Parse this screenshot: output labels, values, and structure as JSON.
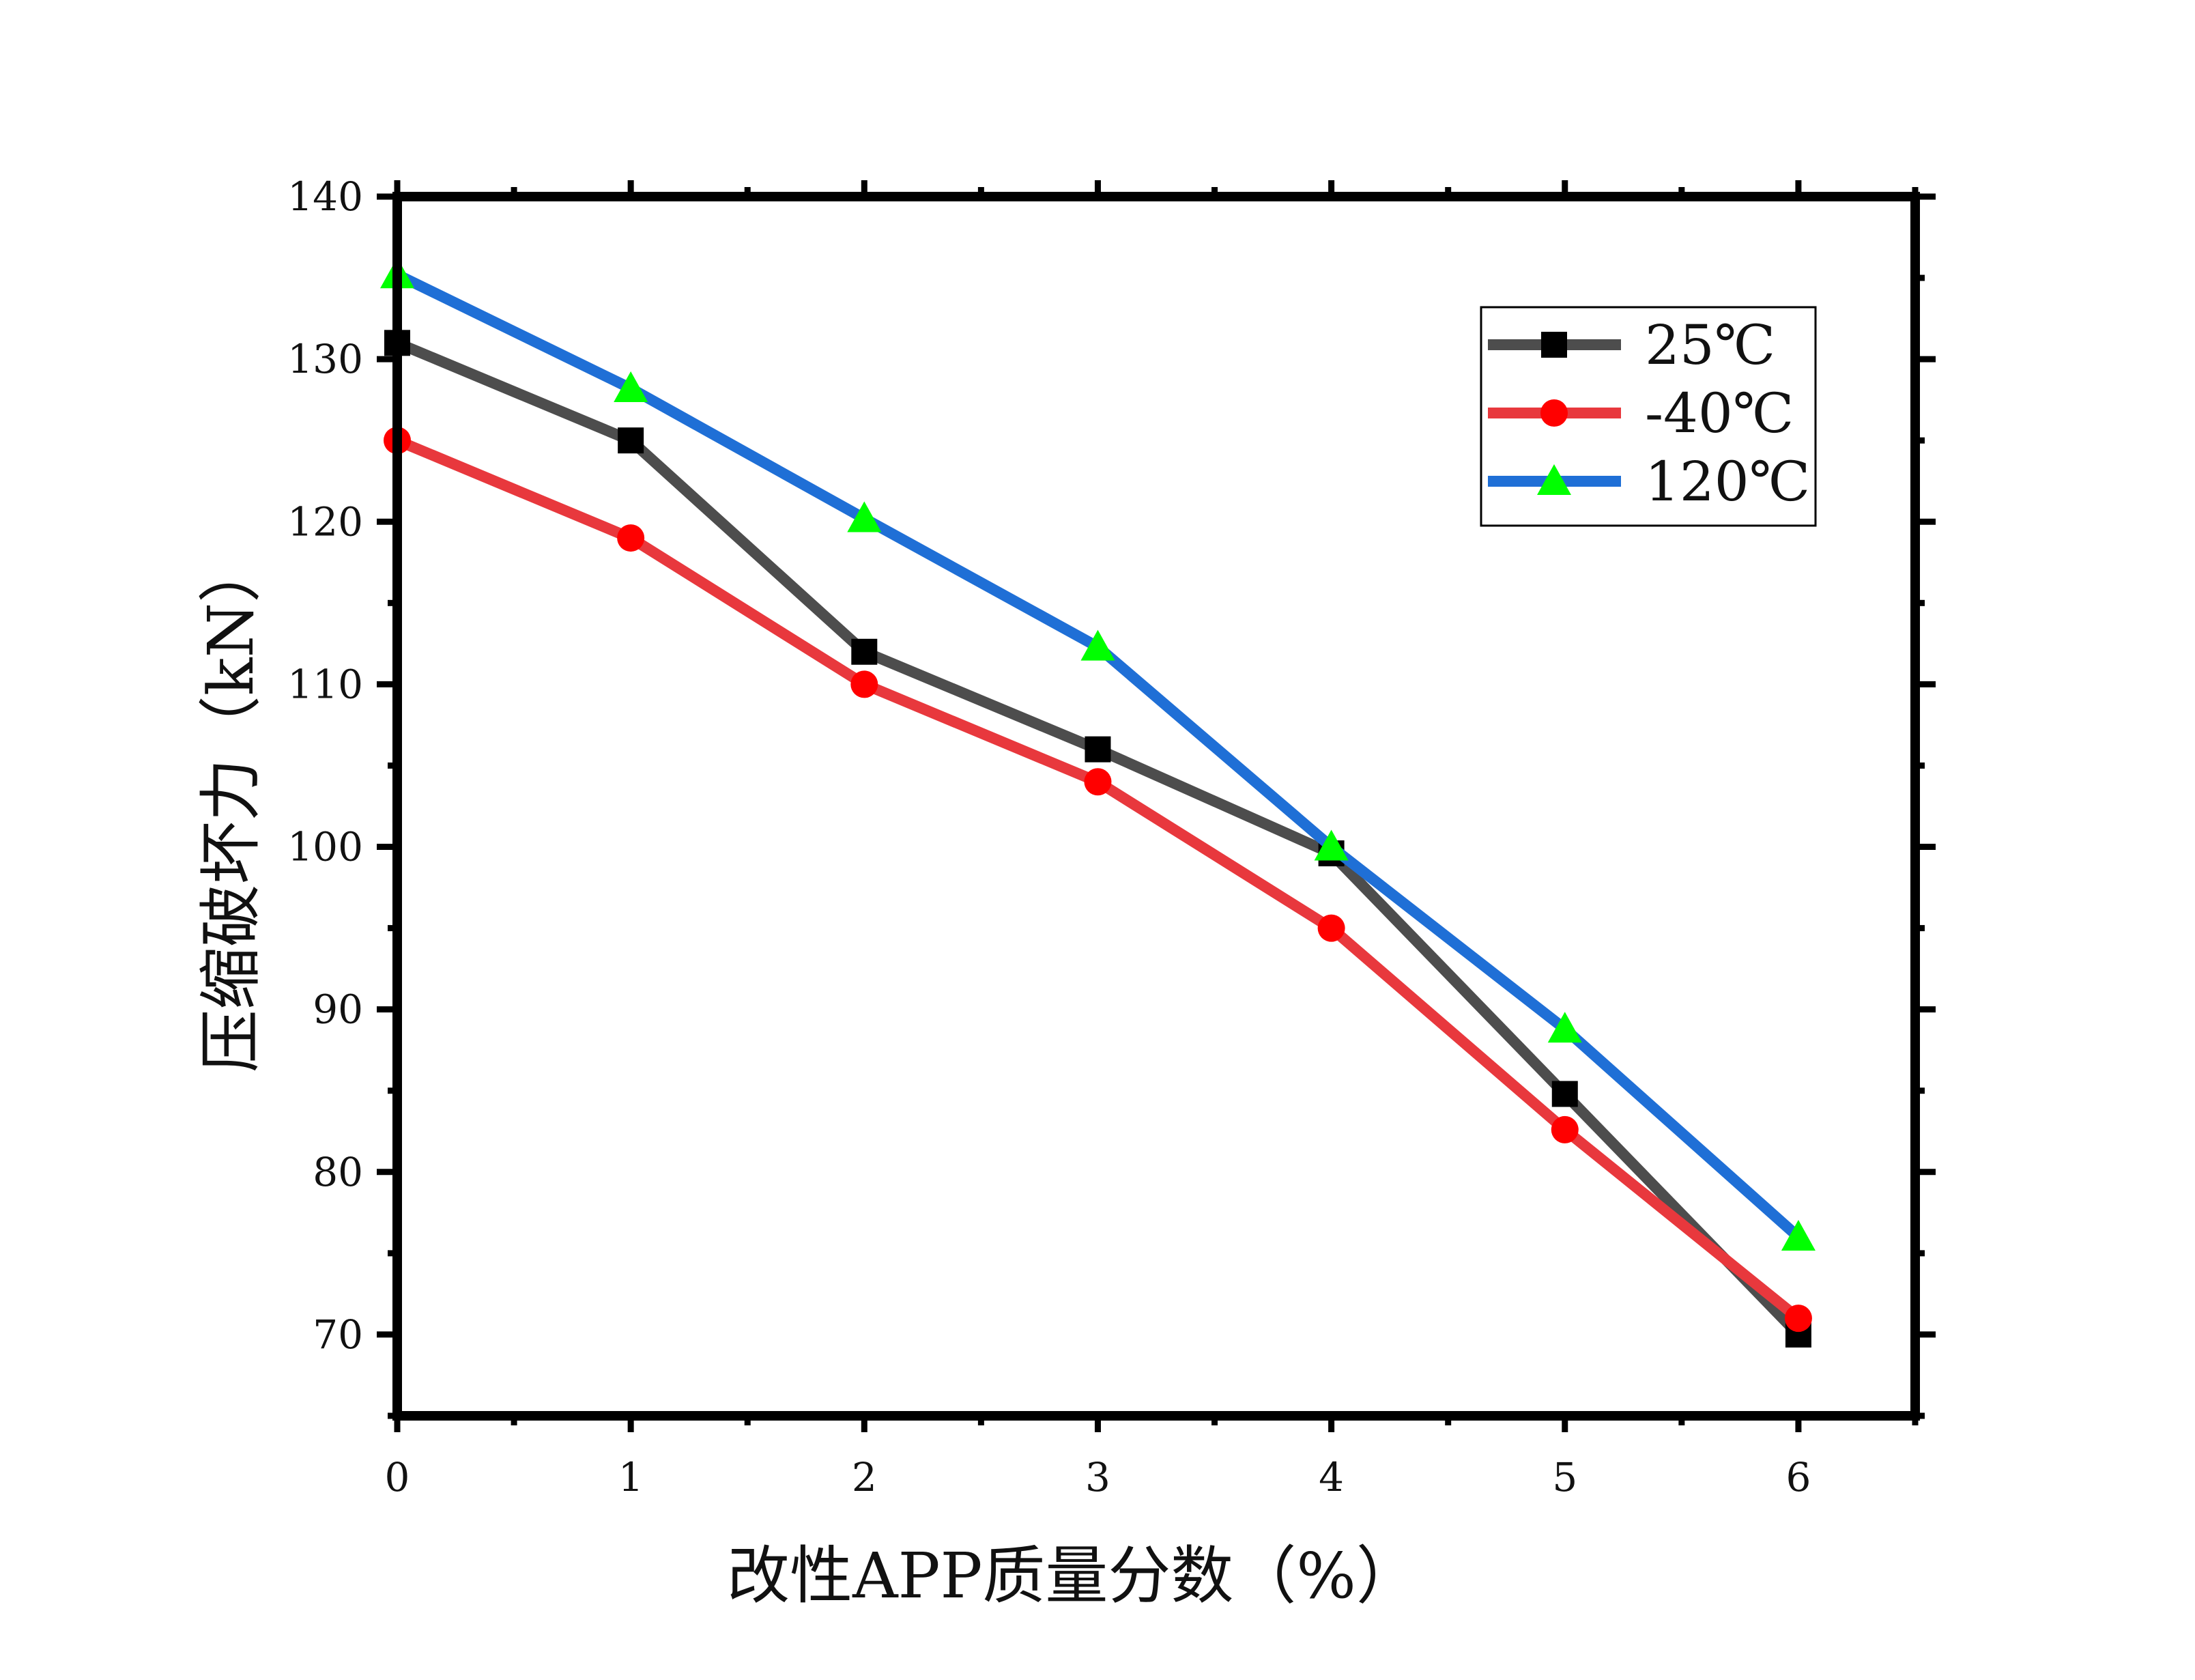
{
  "chart_data": {
    "type": "line",
    "xlabel": "改性APP质量分数（%）",
    "ylabel": "压缩破坏力（kN）",
    "x": [
      0,
      1,
      2,
      3,
      4,
      5,
      6
    ],
    "xlim": [
      0,
      6.5
    ],
    "ylim": [
      65,
      140
    ],
    "xticks": [
      0,
      1,
      2,
      3,
      4,
      5,
      6
    ],
    "yticks": [
      70,
      80,
      90,
      100,
      110,
      120,
      130,
      140
    ],
    "grid": false,
    "legend_position": "top-right",
    "series": [
      {
        "name": "25℃",
        "marker": "square",
        "color": "#4d4d4d",
        "marker_color": "#000000",
        "values": [
          131,
          125,
          112,
          106,
          99.6,
          84.8,
          70
        ]
      },
      {
        "name": "-40℃",
        "marker": "circle",
        "color": "#e8383d",
        "marker_color": "#ff0000",
        "values": [
          125,
          119,
          110,
          104,
          95,
          82.6,
          71
        ]
      },
      {
        "name": "120℃",
        "marker": "triangle",
        "color": "#1f6fd6",
        "marker_color": "#00ff00",
        "values": [
          135.2,
          128.2,
          120.2,
          112.3,
          100,
          88.8,
          76
        ]
      }
    ]
  }
}
